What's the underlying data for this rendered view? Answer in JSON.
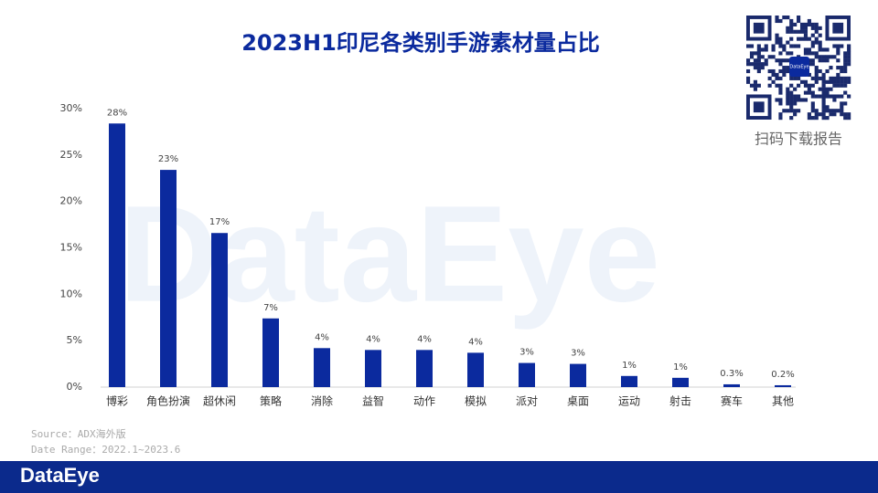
{
  "chart_data": {
    "type": "bar",
    "title": "2023H1印尼各类别手游素材量占比",
    "categories": [
      "博彩",
      "角色扮演",
      "超休闲",
      "策略",
      "消除",
      "益智",
      "动作",
      "模拟",
      "派对",
      "桌面",
      "运动",
      "射击",
      "赛车",
      "其他"
    ],
    "values": [
      28.4,
      23.4,
      16.6,
      7.4,
      4.2,
      4.0,
      4.0,
      3.7,
      2.6,
      2.5,
      1.2,
      1.0,
      0.3,
      0.2
    ],
    "value_labels": [
      "28%",
      "23%",
      "17%",
      "7%",
      "4%",
      "4%",
      "4%",
      "4%",
      "3%",
      "3%",
      "1%",
      "1%",
      "0.3%",
      "0.2%"
    ],
    "color": "#0b2a9e",
    "ylim": [
      0,
      30
    ],
    "yticks": [
      {
        "value": 0,
        "label": "0%"
      },
      {
        "value": 5,
        "label": "5%"
      },
      {
        "value": 10,
        "label": "10%"
      },
      {
        "value": 15,
        "label": "15%"
      },
      {
        "value": 20,
        "label": "20%"
      },
      {
        "value": 25,
        "label": "25%"
      },
      {
        "value": 30,
        "label": "30%"
      }
    ],
    "grid": false
  },
  "watermark": "DataEye",
  "qr_logo": "DataEye",
  "qr_caption": "扫码下载报告",
  "source": "Source：ADX海外版",
  "date_range": "Date Range：2022.1~2023.6",
  "brand": "DataEye"
}
